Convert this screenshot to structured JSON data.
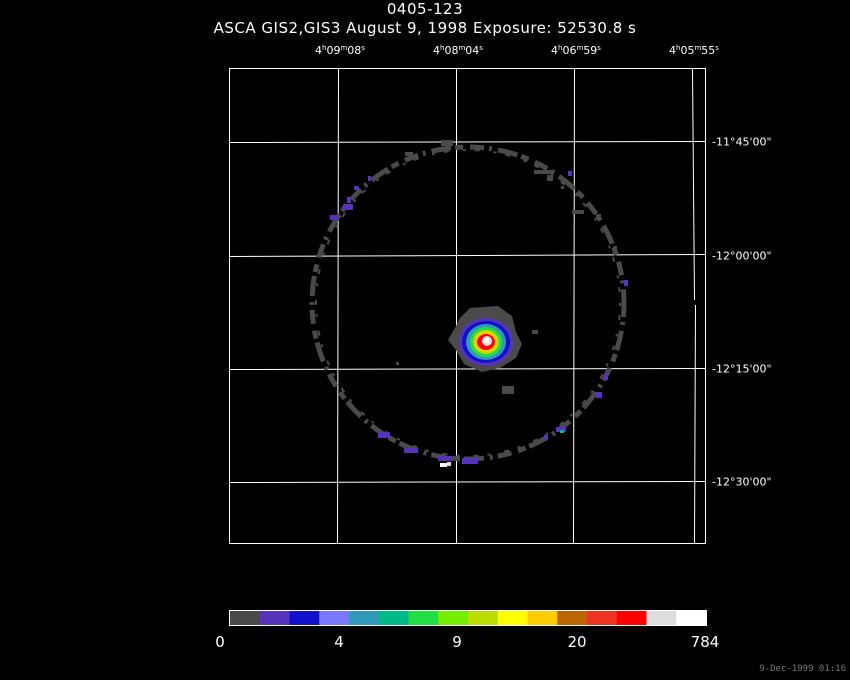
{
  "header": {
    "object": "0405-123",
    "subtitle": "ASCA GIS2,GIS3 August 9, 1998 Exposure: 52530.8 s"
  },
  "ra_axis": [
    {
      "h": "4",
      "m": "09",
      "s": "08"
    },
    {
      "h": "4",
      "m": "08",
      "s": "04"
    },
    {
      "h": "4",
      "m": "06",
      "s": "59"
    },
    {
      "h": "4",
      "m": "05",
      "s": "55"
    }
  ],
  "dec_axis": [
    "-11°45'00\"",
    "-12°00'00\"",
    "-12°15'00\"",
    "-12°30'00\""
  ],
  "colorbar": {
    "colors": [
      "#4a4a4a",
      "#5533bb",
      "#1111cc",
      "#7777ff",
      "#3399bb",
      "#00bb88",
      "#22dd44",
      "#77ee00",
      "#bbdd00",
      "#ffff00",
      "#ffcc00",
      "#bb6600",
      "#ee3322",
      "#ff0000",
      "#dddddd",
      "#ffffff"
    ],
    "labels": [
      "0",
      "4",
      "9",
      "20",
      "784"
    ]
  },
  "timestamp": "9-Dec-1999 01:16"
}
